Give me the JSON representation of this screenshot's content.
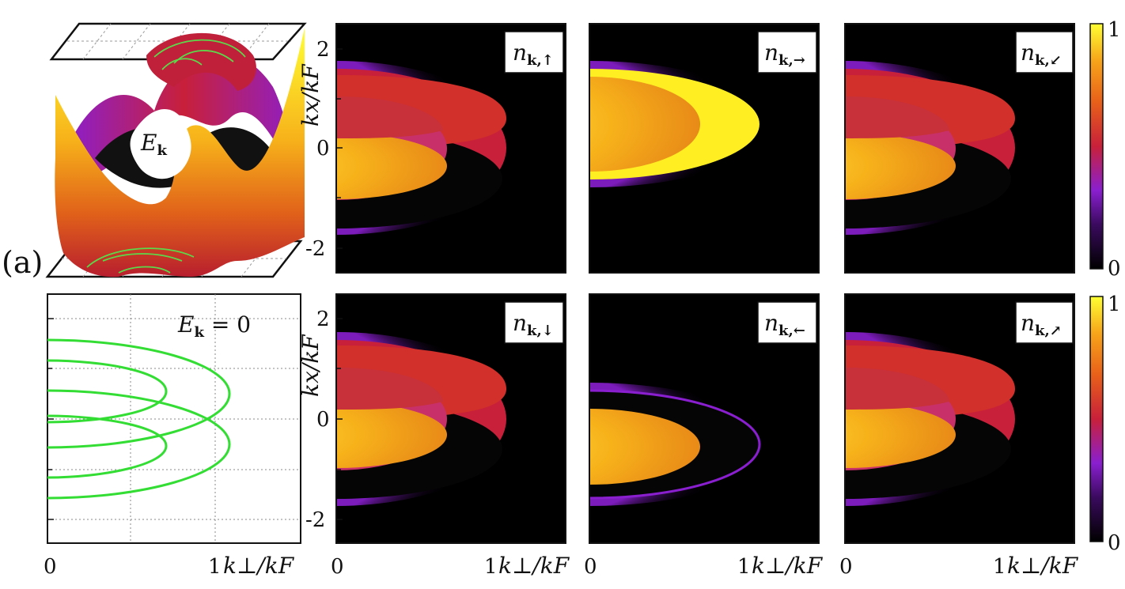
{
  "panel_tag": "(a)",
  "surface": {
    "label_main": "E",
    "label_sub": "k"
  },
  "contour_panel": {
    "label_main": "E",
    "label_sub": "k",
    "label_rest": " = 0",
    "x_ticks": [
      "0",
      "1"
    ],
    "x_axis_label": "k⊥/kF"
  },
  "density_panels": [
    {
      "id": "up",
      "sym_main": "n",
      "sym_sub": "k,↑"
    },
    {
      "id": "right",
      "sym_main": "n",
      "sym_sub": "k,→"
    },
    {
      "id": "diag-down-left",
      "sym_main": "n",
      "sym_sub": "k,↙"
    },
    {
      "id": "down",
      "sym_main": "n",
      "sym_sub": "k,↓"
    },
    {
      "id": "left",
      "sym_main": "n",
      "sym_sub": "k,←"
    },
    {
      "id": "diag-up-right",
      "sym_main": "n",
      "sym_sub": "k,↗"
    }
  ],
  "axes": {
    "y_label": "kx/kF",
    "y_ticks": [
      "2",
      "0",
      "-2"
    ],
    "x_ticks": [
      "0",
      "1"
    ],
    "x_label": "k⊥/kF"
  },
  "colorbar": {
    "max_label": "1",
    "min_label": "0",
    "colors": [
      "#000000",
      "#3a0a5e",
      "#8a1fd0",
      "#c81a3a",
      "#e8601a",
      "#f7a51a",
      "#ffff33"
    ]
  }
}
